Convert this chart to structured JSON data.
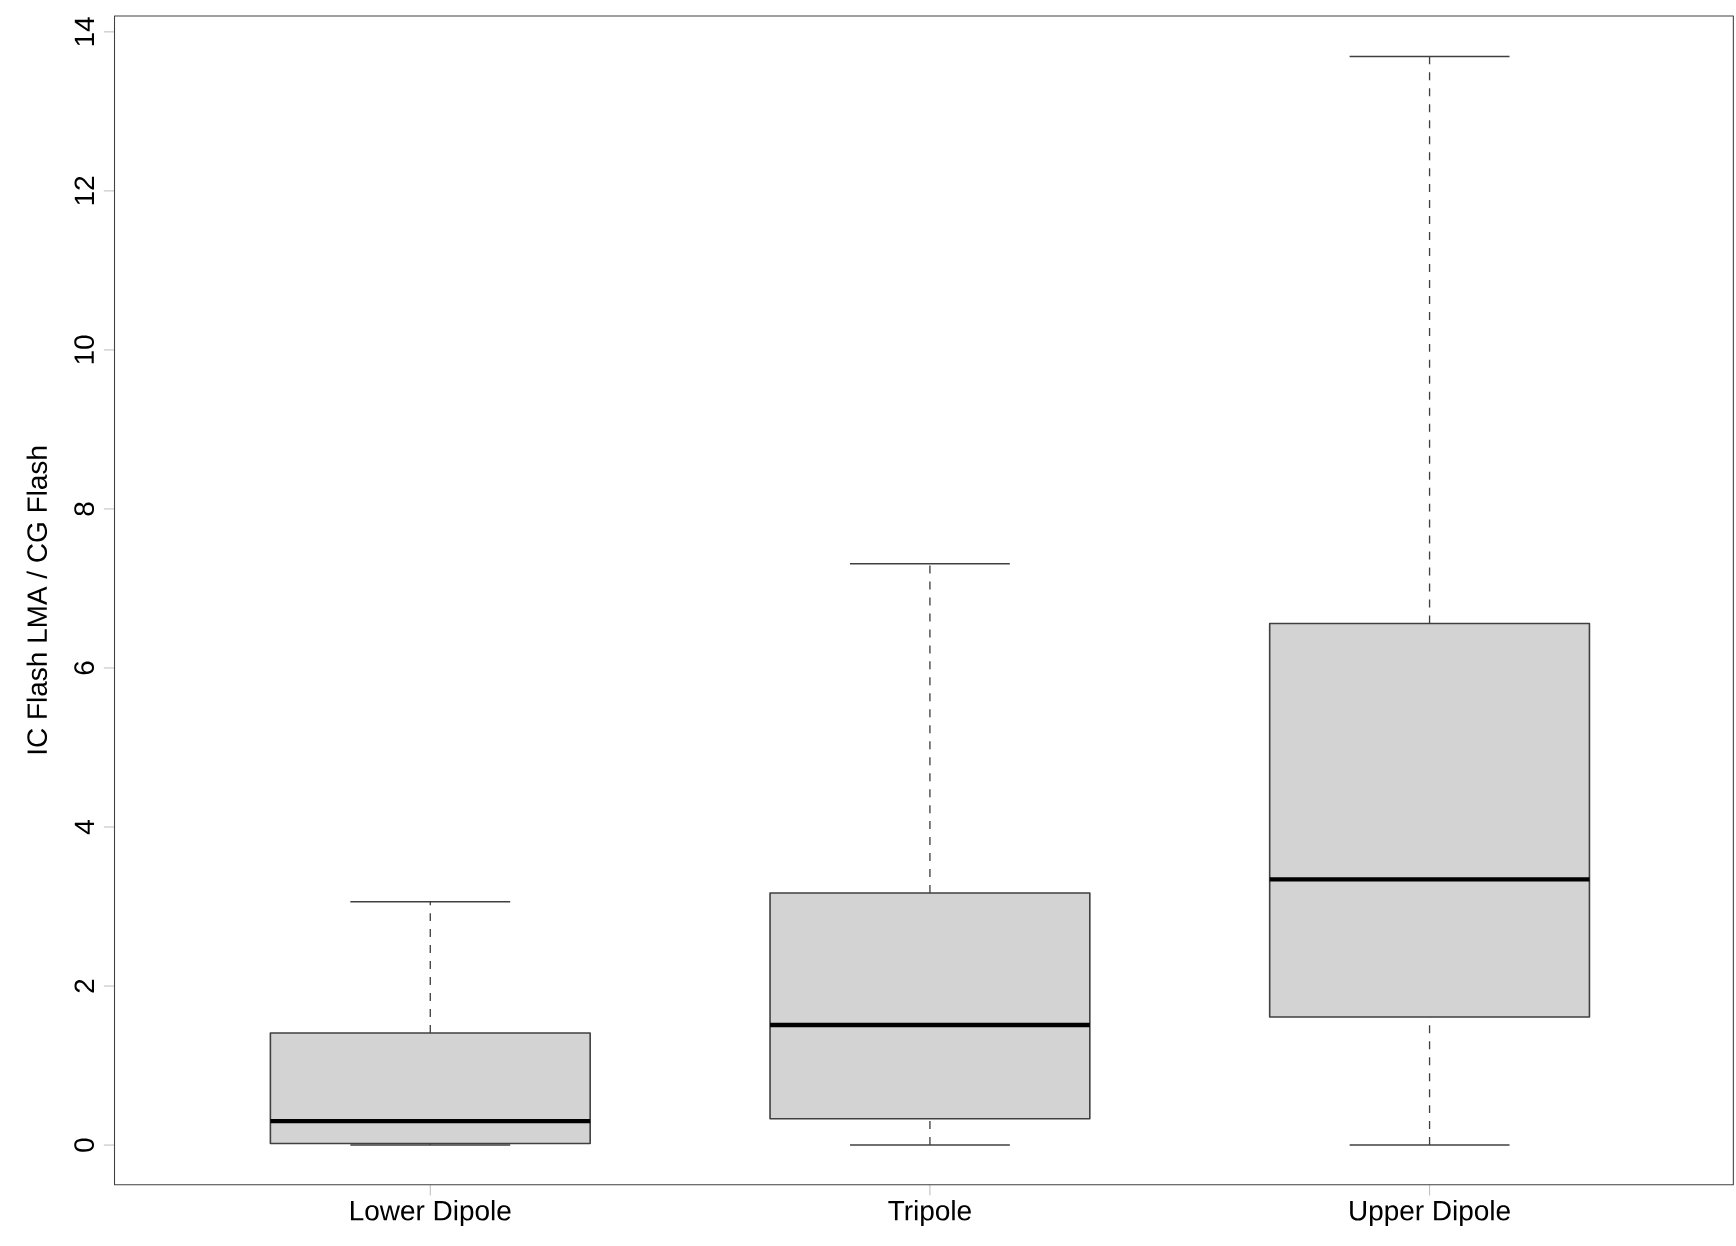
{
  "chart_data": {
    "type": "box",
    "ylabel": "IC Flash LMA / CG Flash",
    "categories": [
      "Lower Dipole",
      "Tripole",
      "Upper Dipole"
    ],
    "color": "#d3d3d3",
    "boxes": [
      {
        "low": 0,
        "q1": 0.02,
        "median": 0.3,
        "q3": 1.41,
        "high": 3.06
      },
      {
        "low": 0,
        "q1": 0.33,
        "median": 1.51,
        "q3": 3.17,
        "high": 7.31
      },
      {
        "low": 0,
        "q1": 1.61,
        "median": 3.34,
        "q3": 6.56,
        "high": 13.69
      }
    ],
    "ylim": [
      -0.5,
      14.2
    ],
    "yticks": [
      0,
      2,
      4,
      6,
      8,
      10,
      12,
      14
    ],
    "grid": false
  }
}
